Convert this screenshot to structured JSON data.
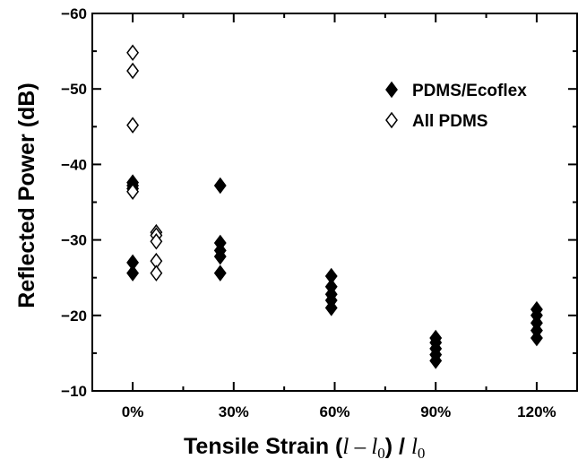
{
  "chart_data": {
    "type": "scatter",
    "xlabel_parts": [
      "Tensile Strain (",
      "l",
      " – ",
      "l",
      "0",
      ") / ",
      "l",
      "0"
    ],
    "ylabel": "Reflected Power (dB)",
    "x_categories": [
      "0%",
      "30%",
      "60%",
      "90%",
      "120%"
    ],
    "x_tick_values": [
      0,
      30,
      60,
      90,
      120
    ],
    "xlim": [
      -12,
      132
    ],
    "ylim": [
      -10,
      -60
    ],
    "y_ticks": [
      -60,
      -50,
      -40,
      -30,
      -20,
      -10
    ],
    "y_axis_reversed": true,
    "legend_position": "top-right",
    "series": [
      {
        "name": "PDMS/Ecoflex",
        "marker": "filled-diamond",
        "color": "#000000",
        "points": [
          [
            0,
            -37.6
          ],
          [
            0,
            -37.2
          ],
          [
            0,
            -36.8
          ],
          [
            0,
            -27.0
          ],
          [
            0,
            -25.6
          ],
          [
            26,
            -37.2
          ],
          [
            26,
            -29.6
          ],
          [
            26,
            -28.6
          ],
          [
            26,
            -27.8
          ],
          [
            26,
            -25.6
          ],
          [
            59,
            -25.2
          ],
          [
            59,
            -23.8
          ],
          [
            59,
            -22.8
          ],
          [
            59,
            -22.0
          ],
          [
            59,
            -21.0
          ],
          [
            90,
            -17.0
          ],
          [
            90,
            -16.4
          ],
          [
            90,
            -15.6
          ],
          [
            90,
            -14.8
          ],
          [
            90,
            -14.0
          ],
          [
            120,
            -20.8
          ],
          [
            120,
            -20.0
          ],
          [
            120,
            -19.0
          ],
          [
            120,
            -18.0
          ],
          [
            120,
            -17.0
          ]
        ]
      },
      {
        "name": "All PDMS",
        "marker": "open-diamond",
        "color": "#000000",
        "points": [
          [
            0,
            -54.8
          ],
          [
            0,
            -52.4
          ],
          [
            0,
            -45.2
          ],
          [
            0,
            -36.4
          ],
          [
            7,
            -31.0
          ],
          [
            7,
            -30.6
          ],
          [
            7,
            -29.8
          ],
          [
            7,
            -27.2
          ],
          [
            7,
            -25.6
          ]
        ]
      }
    ]
  }
}
